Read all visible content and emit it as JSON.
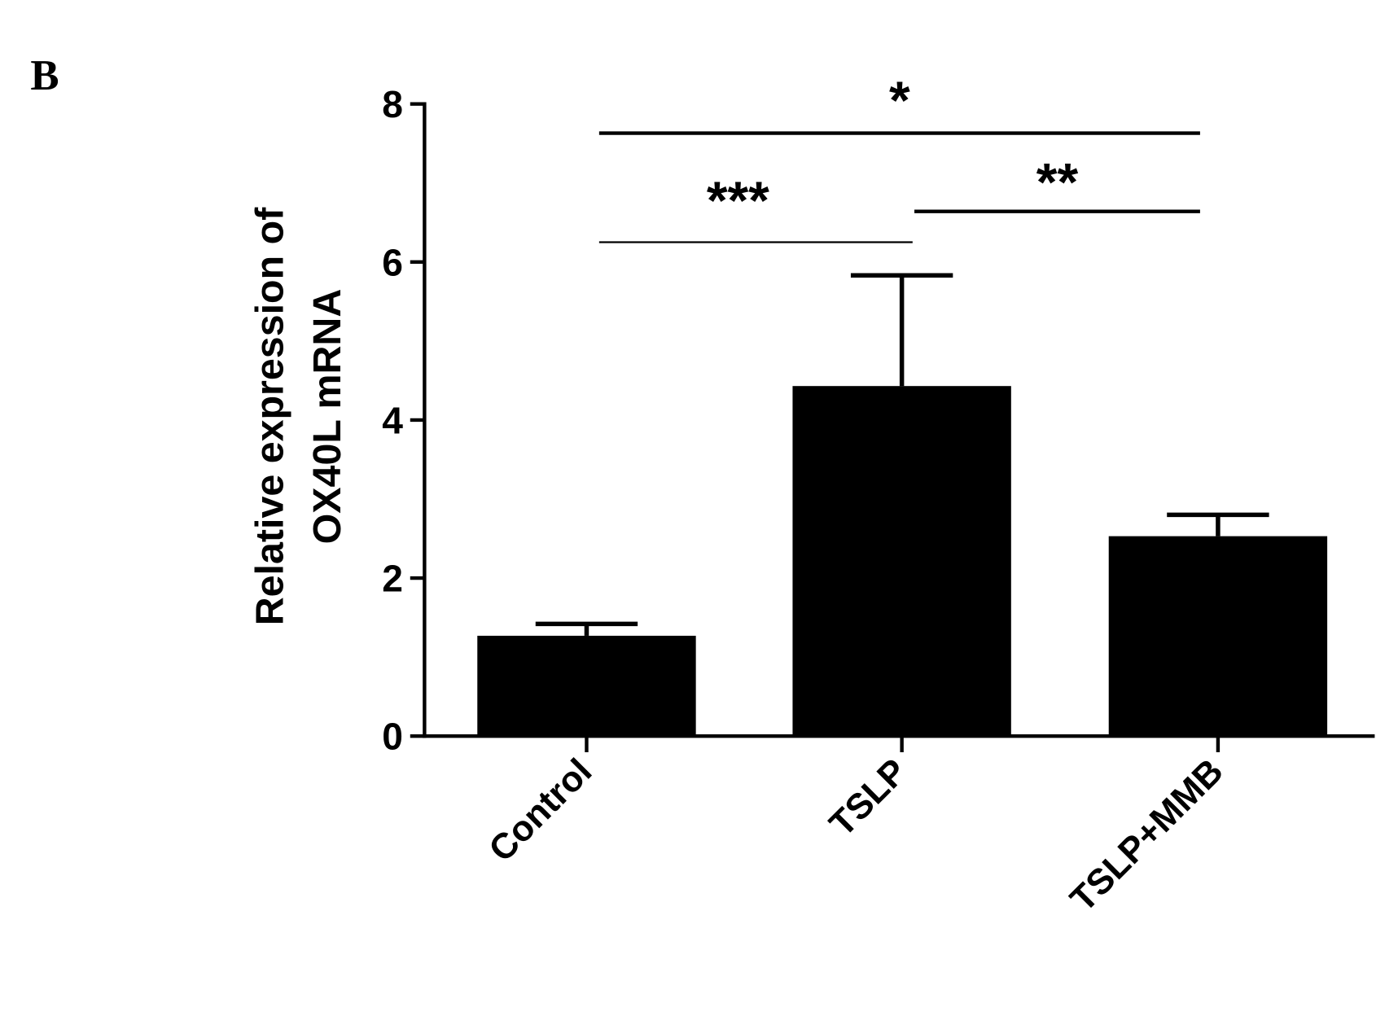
{
  "chart_data": {
    "type": "bar",
    "panel_label": "B",
    "y_label": [
      "Relative expression of",
      "OX40L mRNA"
    ],
    "categories": [
      "Control",
      "TSLP",
      "TSLP+MMB"
    ],
    "values": [
      1.27,
      4.43,
      2.53
    ],
    "errors": [
      0.15,
      1.4,
      0.27
    ],
    "color": "#000000",
    "ylim": [
      0,
      8
    ],
    "yticks": [
      0,
      2,
      4,
      6,
      8
    ],
    "annotations": [
      {
        "text": "*",
        "from": 0,
        "to": 2,
        "y": 7.63
      },
      {
        "text": "***",
        "from": 0,
        "to": 1,
        "y": 6.25
      },
      {
        "text": "**",
        "from": 1,
        "to": 2,
        "y": 6.64
      }
    ]
  }
}
